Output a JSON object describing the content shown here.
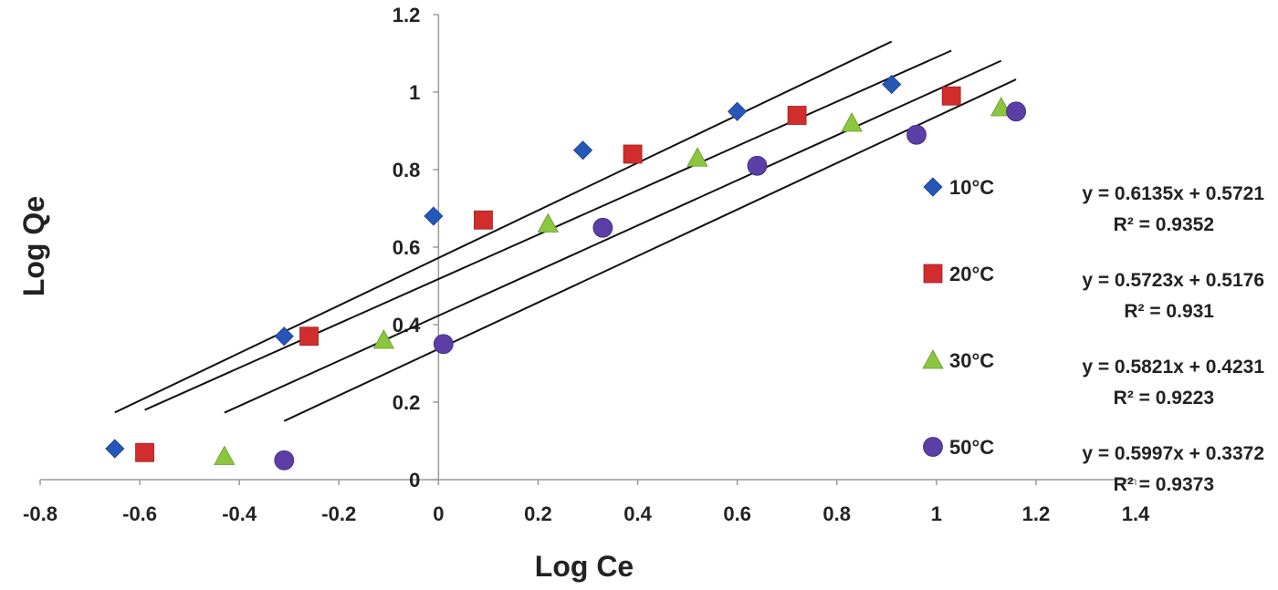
{
  "chart_data": {
    "type": "scatter",
    "title": "",
    "xlabel": "Log Ce",
    "ylabel": "Log Qe",
    "xlim": [
      -0.8,
      1.4
    ],
    "ylim": [
      0,
      1.2
    ],
    "xticks": [
      "-0.8",
      "-0.6",
      "-0.4",
      "-0.2",
      "0",
      "0.2",
      "0.4",
      "0.6",
      "0.8",
      "1",
      "1.2",
      "1.4"
    ],
    "yticks": [
      "0",
      "0.2",
      "0.4",
      "0.6",
      "0.8",
      "1",
      "1.2"
    ],
    "grid": false,
    "legend_position": "right",
    "series": [
      {
        "name": "10°C",
        "marker": "diamond",
        "color": "#2457b8",
        "x": [
          -0.65,
          -0.31,
          -0.01,
          0.29,
          0.6,
          0.91
        ],
        "y": [
          0.08,
          0.37,
          0.68,
          0.85,
          0.95,
          1.02
        ],
        "fit_x": [
          -0.65,
          0.91
        ],
        "equation": "y = 0.6135x + 0.5721",
        "r2": "R² = 0.9352"
      },
      {
        "name": "20°C",
        "marker": "square",
        "color": "#d12d2d",
        "x": [
          -0.59,
          -0.26,
          0.09,
          0.39,
          0.72,
          1.03
        ],
        "y": [
          0.07,
          0.37,
          0.67,
          0.84,
          0.94,
          0.99
        ],
        "fit_x": [
          -0.59,
          1.03
        ],
        "equation": "y = 0.5723x + 0.5176",
        "r2": "R² = 0.931"
      },
      {
        "name": "30°C",
        "marker": "triangle",
        "color": "#8cc63f",
        "x": [
          -0.43,
          -0.11,
          0.22,
          0.52,
          0.83,
          1.13
        ],
        "y": [
          0.06,
          0.36,
          0.66,
          0.83,
          0.92,
          0.96
        ],
        "fit_x": [
          -0.43,
          1.13
        ],
        "equation": "y = 0.5821x + 0.4231",
        "r2": "R² = 0.9223"
      },
      {
        "name": "50°C",
        "marker": "circle",
        "color": "#5b3ea6",
        "x": [
          -0.31,
          0.01,
          0.33,
          0.64,
          0.96,
          1.16
        ],
        "y": [
          0.05,
          0.35,
          0.65,
          0.81,
          0.89,
          0.95
        ],
        "fit_x": [
          -0.31,
          1.16
        ],
        "equation": "y = 0.5997x + 0.3372",
        "r2": "R² = 0.9373"
      }
    ]
  }
}
